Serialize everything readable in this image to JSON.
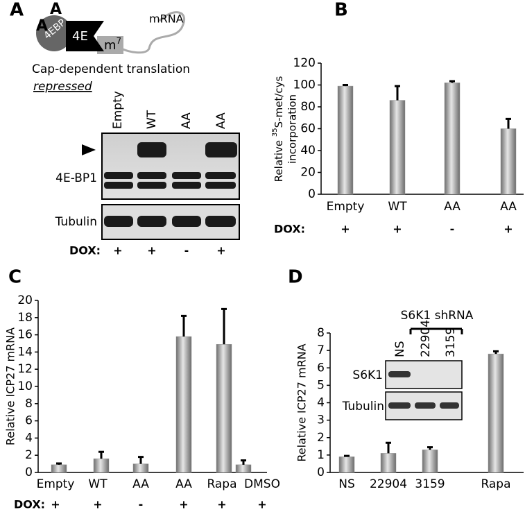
{
  "panels": [
    "A",
    "B",
    "C",
    "D"
  ],
  "diagram": {
    "sites": [
      "A",
      "A"
    ],
    "protein1": "4EBP",
    "protein2": "4E",
    "cap": "m",
    "cap_sup": "7",
    "rna": "mRNA",
    "caption": "Cap-dependent translation",
    "state": "repressed"
  },
  "blot": {
    "lanes": [
      "Empty",
      "WT",
      "AA",
      "AA"
    ],
    "rows": [
      "4E-BP1",
      "Tubulin"
    ],
    "dox_label": "DOX:",
    "dox": [
      "+",
      "+",
      "-",
      "+"
    ]
  },
  "chart_data": [
    {
      "type": "bar",
      "ylabel": [
        "Relative ",
        "35",
        "S-met/cys",
        "incorporation"
      ],
      "categories": [
        "Empty",
        "WT",
        "AA",
        "AA"
      ],
      "values": [
        99,
        86,
        102,
        60
      ],
      "errors": [
        1,
        13,
        1.5,
        9
      ],
      "ylim": [
        0,
        120
      ],
      "yticks": [
        0,
        20,
        40,
        60,
        80,
        100,
        120
      ],
      "dox_label": "DOX:",
      "dox": [
        "+",
        "+",
        "-",
        "+"
      ],
      "color": "#9a9a9a"
    },
    {
      "type": "bar",
      "ylabel": "Relative ICP27 mRNA",
      "categories": [
        "Empty",
        "WT",
        "AA",
        "AA",
        "Rapa",
        "DMSO"
      ],
      "values": [
        0.9,
        1.6,
        1.0,
        15.8,
        14.9,
        0.9
      ],
      "errors": [
        0.15,
        0.8,
        0.8,
        2.4,
        4.1,
        0.5
      ],
      "ylim": [
        0,
        20
      ],
      "yticks": [
        0,
        2,
        4,
        6,
        8,
        10,
        12,
        14,
        16,
        18,
        20
      ],
      "dox_label": "DOX:",
      "dox": [
        "+",
        "+",
        "-",
        "+",
        "+",
        "+"
      ],
      "color": "#9a9a9a"
    },
    {
      "type": "bar",
      "ylabel": "Relative ICP27 mRNA",
      "categories": [
        "NS",
        "22904",
        "3159",
        "Rapa"
      ],
      "values": [
        0.9,
        1.1,
        1.3,
        6.8
      ],
      "errors": [
        0.05,
        0.6,
        0.15,
        0.15
      ],
      "ylim": [
        0,
        8
      ],
      "yticks": [
        0,
        1,
        2,
        3,
        4,
        5,
        6,
        7,
        8
      ],
      "color": "#9a9a9a",
      "inset": {
        "title": "S6K1 shRNA",
        "lanes": [
          "NS",
          "22904",
          "3159"
        ],
        "rows": [
          "S6K1",
          "Tubulin"
        ]
      }
    }
  ]
}
